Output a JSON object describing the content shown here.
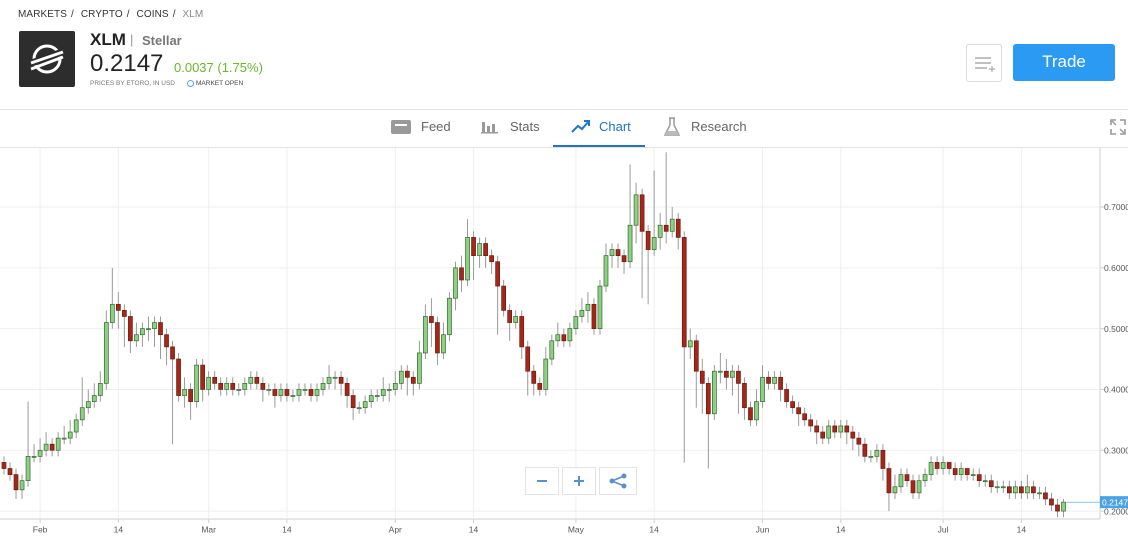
{
  "breadcrumb": [
    "MARKETS",
    "CRYPTO",
    "COINS",
    "XLM"
  ],
  "breadcrumb_separator": "/",
  "header": {
    "symbol": "XLM",
    "divider": "|",
    "name": "Stellar",
    "price": "0.2147",
    "change": "0.0037 (1.75%)",
    "source": "PRICES BY ETORO, IN USD",
    "market_status": "MARKET OPEN",
    "trade_button": "Trade"
  },
  "tabs": [
    "Feed",
    "Stats",
    "Chart",
    "Research"
  ],
  "chart_data": {
    "type": "candlestick",
    "up_color": "#8fcf85",
    "down_color": "#a3281a",
    "wick_color": "#9a9a9a",
    "grid": true,
    "ylim": [
      0.187,
      0.797
    ],
    "yticks": [
      {
        "value": 0.2,
        "label": "0.2000"
      },
      {
        "value": 0.3,
        "label": "0.3000"
      },
      {
        "value": 0.4,
        "label": "0.4000"
      },
      {
        "value": 0.5,
        "label": "0.5000"
      },
      {
        "value": 0.6,
        "label": "0.6000"
      },
      {
        "value": 0.7,
        "label": "0.7000"
      }
    ],
    "xlim": [
      -0.66,
      182.06
    ],
    "xticks": [
      {
        "value": 6,
        "label": "Feb"
      },
      {
        "value": 19,
        "label": "14"
      },
      {
        "value": 34,
        "label": "Mar"
      },
      {
        "value": 47,
        "label": "14"
      },
      {
        "value": 65,
        "label": "Apr"
      },
      {
        "value": 78,
        "label": "14"
      },
      {
        "value": 95,
        "label": "May"
      },
      {
        "value": 108,
        "label": "14"
      },
      {
        "value": 126,
        "label": "Jun"
      },
      {
        "value": 139,
        "label": "14"
      },
      {
        "value": 156,
        "label": "Jul"
      },
      {
        "value": 169,
        "label": "14"
      }
    ],
    "open": [
      0.28,
      0.27,
      0.26,
      0.235,
      0.25,
      0.29,
      0.29,
      0.3,
      0.31,
      0.3,
      0.32,
      0.32,
      0.33,
      0.35,
      0.37,
      0.38,
      0.39,
      0.41,
      0.51,
      0.54,
      0.53,
      0.52,
      0.48,
      0.49,
      0.5,
      0.5,
      0.51,
      0.49,
      0.47,
      0.45,
      0.39,
      0.4,
      0.38,
      0.44,
      0.4,
      0.42,
      0.41,
      0.4,
      0.41,
      0.4,
      0.4,
      0.41,
      0.42,
      0.41,
      0.4,
      0.4,
      0.39,
      0.4,
      0.39,
      0.39,
      0.4,
      0.4,
      0.39,
      0.4,
      0.41,
      0.42,
      0.42,
      0.41,
      0.39,
      0.37,
      0.37,
      0.38,
      0.39,
      0.39,
      0.4,
      0.4,
      0.41,
      0.43,
      0.42,
      0.41,
      0.46,
      0.52,
      0.51,
      0.46,
      0.49,
      0.55,
      0.6,
      0.58,
      0.65,
      0.62,
      0.64,
      0.62,
      0.61,
      0.57,
      0.53,
      0.51,
      0.52,
      0.47,
      0.43,
      0.41,
      0.4,
      0.45,
      0.48,
      0.49,
      0.48,
      0.5,
      0.52,
      0.53,
      0.54,
      0.5,
      0.57,
      0.62,
      0.63,
      0.62,
      0.61,
      0.67,
      0.72,
      0.66,
      0.63,
      0.65,
      0.67,
      0.66,
      0.68,
      0.65,
      0.47,
      0.48,
      0.43,
      0.41,
      0.36,
      0.43,
      0.43,
      0.42,
      0.43,
      0.41,
      0.37,
      0.35,
      0.38,
      0.42,
      0.41,
      0.42,
      0.4,
      0.38,
      0.37,
      0.36,
      0.35,
      0.34,
      0.33,
      0.32,
      0.34,
      0.33,
      0.34,
      0.33,
      0.32,
      0.31,
      0.29,
      0.29,
      0.3,
      0.27,
      0.23,
      0.24,
      0.26,
      0.25,
      0.23,
      0.25,
      0.26,
      0.28,
      0.27,
      0.28,
      0.27,
      0.26,
      0.27,
      0.26,
      0.26,
      0.25,
      0.25,
      0.24,
      0.24,
      0.24,
      0.23,
      0.24,
      0.23,
      0.24,
      0.23,
      0.23,
      0.22,
      0.21,
      0.2
    ],
    "close": [
      0.27,
      0.26,
      0.235,
      0.25,
      0.29,
      0.29,
      0.3,
      0.31,
      0.3,
      0.32,
      0.32,
      0.33,
      0.35,
      0.37,
      0.38,
      0.39,
      0.41,
      0.51,
      0.54,
      0.53,
      0.52,
      0.48,
      0.49,
      0.5,
      0.5,
      0.51,
      0.49,
      0.47,
      0.45,
      0.39,
      0.4,
      0.38,
      0.44,
      0.4,
      0.42,
      0.41,
      0.4,
      0.41,
      0.4,
      0.4,
      0.41,
      0.42,
      0.41,
      0.4,
      0.4,
      0.39,
      0.4,
      0.39,
      0.39,
      0.4,
      0.4,
      0.39,
      0.4,
      0.41,
      0.42,
      0.42,
      0.41,
      0.39,
      0.37,
      0.37,
      0.38,
      0.39,
      0.39,
      0.4,
      0.4,
      0.41,
      0.43,
      0.42,
      0.41,
      0.46,
      0.52,
      0.51,
      0.46,
      0.49,
      0.55,
      0.6,
      0.58,
      0.65,
      0.62,
      0.64,
      0.62,
      0.61,
      0.57,
      0.53,
      0.51,
      0.52,
      0.47,
      0.43,
      0.41,
      0.4,
      0.45,
      0.48,
      0.49,
      0.48,
      0.5,
      0.52,
      0.53,
      0.54,
      0.5,
      0.57,
      0.62,
      0.63,
      0.62,
      0.61,
      0.67,
      0.72,
      0.66,
      0.63,
      0.65,
      0.67,
      0.66,
      0.68,
      0.65,
      0.47,
      0.48,
      0.43,
      0.41,
      0.36,
      0.43,
      0.43,
      0.42,
      0.43,
      0.41,
      0.37,
      0.35,
      0.38,
      0.42,
      0.41,
      0.42,
      0.4,
      0.38,
      0.37,
      0.36,
      0.35,
      0.34,
      0.33,
      0.32,
      0.34,
      0.33,
      0.34,
      0.33,
      0.32,
      0.31,
      0.29,
      0.29,
      0.3,
      0.27,
      0.23,
      0.24,
      0.26,
      0.25,
      0.23,
      0.25,
      0.26,
      0.28,
      0.27,
      0.28,
      0.27,
      0.26,
      0.27,
      0.26,
      0.26,
      0.25,
      0.25,
      0.24,
      0.24,
      0.24,
      0.23,
      0.24,
      0.23,
      0.24,
      0.23,
      0.23,
      0.22,
      0.21,
      0.2,
      0.2147
    ],
    "high": [
      0.29,
      0.28,
      0.27,
      0.26,
      0.38,
      0.31,
      0.32,
      0.33,
      0.32,
      0.33,
      0.34,
      0.35,
      0.36,
      0.42,
      0.4,
      0.41,
      0.43,
      0.53,
      0.6,
      0.56,
      0.54,
      0.53,
      0.51,
      0.51,
      0.52,
      0.52,
      0.52,
      0.5,
      0.48,
      0.46,
      0.42,
      0.41,
      0.45,
      0.45,
      0.43,
      0.43,
      0.42,
      0.42,
      0.42,
      0.41,
      0.42,
      0.43,
      0.43,
      0.42,
      0.41,
      0.41,
      0.41,
      0.41,
      0.4,
      0.41,
      0.41,
      0.41,
      0.41,
      0.42,
      0.44,
      0.43,
      0.43,
      0.42,
      0.4,
      0.38,
      0.39,
      0.4,
      0.4,
      0.42,
      0.41,
      0.43,
      0.44,
      0.44,
      0.43,
      0.48,
      0.54,
      0.55,
      0.52,
      0.51,
      0.56,
      0.61,
      0.62,
      0.68,
      0.66,
      0.65,
      0.65,
      0.63,
      0.62,
      0.58,
      0.54,
      0.53,
      0.53,
      0.48,
      0.44,
      0.42,
      0.47,
      0.49,
      0.51,
      0.5,
      0.51,
      0.53,
      0.55,
      0.56,
      0.55,
      0.58,
      0.64,
      0.64,
      0.64,
      0.63,
      0.77,
      0.74,
      0.73,
      0.67,
      0.76,
      0.69,
      0.79,
      0.7,
      0.69,
      0.66,
      0.5,
      0.49,
      0.45,
      0.42,
      0.44,
      0.46,
      0.45,
      0.44,
      0.44,
      0.42,
      0.38,
      0.4,
      0.44,
      0.43,
      0.43,
      0.43,
      0.41,
      0.39,
      0.38,
      0.37,
      0.36,
      0.35,
      0.34,
      0.35,
      0.35,
      0.35,
      0.35,
      0.34,
      0.33,
      0.32,
      0.3,
      0.31,
      0.31,
      0.28,
      0.26,
      0.27,
      0.27,
      0.26,
      0.26,
      0.27,
      0.29,
      0.29,
      0.29,
      0.28,
      0.28,
      0.28,
      0.27,
      0.27,
      0.27,
      0.26,
      0.26,
      0.25,
      0.25,
      0.25,
      0.25,
      0.25,
      0.26,
      0.25,
      0.24,
      0.24,
      0.23,
      0.22,
      0.22
    ],
    "low": [
      0.26,
      0.25,
      0.22,
      0.22,
      0.24,
      0.28,
      0.28,
      0.29,
      0.29,
      0.29,
      0.31,
      0.31,
      0.32,
      0.34,
      0.36,
      0.37,
      0.38,
      0.4,
      0.5,
      0.5,
      0.47,
      0.46,
      0.47,
      0.47,
      0.48,
      0.47,
      0.45,
      0.44,
      0.31,
      0.38,
      0.37,
      0.35,
      0.37,
      0.38,
      0.39,
      0.4,
      0.39,
      0.39,
      0.39,
      0.39,
      0.39,
      0.4,
      0.4,
      0.38,
      0.39,
      0.37,
      0.38,
      0.38,
      0.38,
      0.38,
      0.39,
      0.38,
      0.38,
      0.39,
      0.4,
      0.4,
      0.39,
      0.37,
      0.35,
      0.36,
      0.36,
      0.37,
      0.38,
      0.38,
      0.38,
      0.39,
      0.4,
      0.39,
      0.39,
      0.4,
      0.45,
      0.47,
      0.44,
      0.45,
      0.48,
      0.53,
      0.56,
      0.57,
      0.58,
      0.6,
      0.6,
      0.59,
      0.49,
      0.52,
      0.48,
      0.5,
      0.45,
      0.39,
      0.39,
      0.39,
      0.39,
      0.44,
      0.47,
      0.47,
      0.47,
      0.49,
      0.51,
      0.51,
      0.49,
      0.49,
      0.56,
      0.6,
      0.6,
      0.59,
      0.6,
      0.64,
      0.55,
      0.54,
      0.62,
      0.63,
      0.64,
      0.65,
      0.63,
      0.28,
      0.45,
      0.37,
      0.36,
      0.27,
      0.35,
      0.41,
      0.4,
      0.39,
      0.36,
      0.35,
      0.34,
      0.34,
      0.37,
      0.4,
      0.4,
      0.38,
      0.37,
      0.36,
      0.34,
      0.34,
      0.33,
      0.31,
      0.31,
      0.31,
      0.32,
      0.32,
      0.31,
      0.3,
      0.29,
      0.28,
      0.28,
      0.28,
      0.25,
      0.2,
      0.22,
      0.23,
      0.24,
      0.22,
      0.22,
      0.24,
      0.25,
      0.26,
      0.26,
      0.26,
      0.25,
      0.25,
      0.25,
      0.25,
      0.24,
      0.24,
      0.23,
      0.23,
      0.23,
      0.22,
      0.22,
      0.22,
      0.22,
      0.22,
      0.22,
      0.21,
      0.2,
      0.19,
      0.19
    ]
  }
}
